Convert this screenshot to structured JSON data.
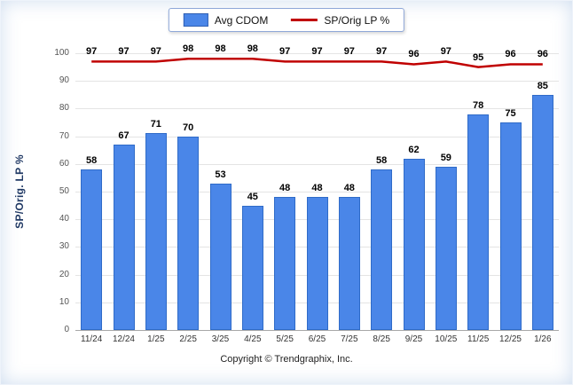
{
  "chart_data": {
    "type": "bar",
    "categories": [
      "11/24",
      "12/24",
      "1/25",
      "2/25",
      "3/25",
      "4/25",
      "5/25",
      "6/25",
      "7/25",
      "8/25",
      "9/25",
      "10/25",
      "11/25",
      "12/25",
      "1/26"
    ],
    "series": [
      {
        "name": "Avg CDOM",
        "type": "bar",
        "color": "#4a86e8",
        "values": [
          58,
          67,
          71,
          70,
          53,
          45,
          48,
          48,
          48,
          58,
          62,
          59,
          78,
          75,
          85
        ]
      },
      {
        "name": "SP/Orig LP %",
        "type": "line",
        "color": "#c00000",
        "values": [
          97,
          97,
          97,
          98,
          98,
          98,
          97,
          97,
          97,
          97,
          96,
          97,
          95,
          96,
          96
        ]
      }
    ],
    "title": "",
    "xlabel": "",
    "ylabel": "SP/Orig. LP %",
    "ylim": [
      0,
      100
    ],
    "ytick_step": 10,
    "grid": true,
    "legend_position": "top-center"
  },
  "legend": {
    "items": [
      {
        "label": "Avg CDOM",
        "swatch": "bar",
        "color": "#4a86e8"
      },
      {
        "label": "SP/Orig LP %",
        "swatch": "line",
        "color": "#c00000"
      }
    ]
  },
  "footer": {
    "copyright": "Copyright © Trendgraphix, Inc."
  }
}
